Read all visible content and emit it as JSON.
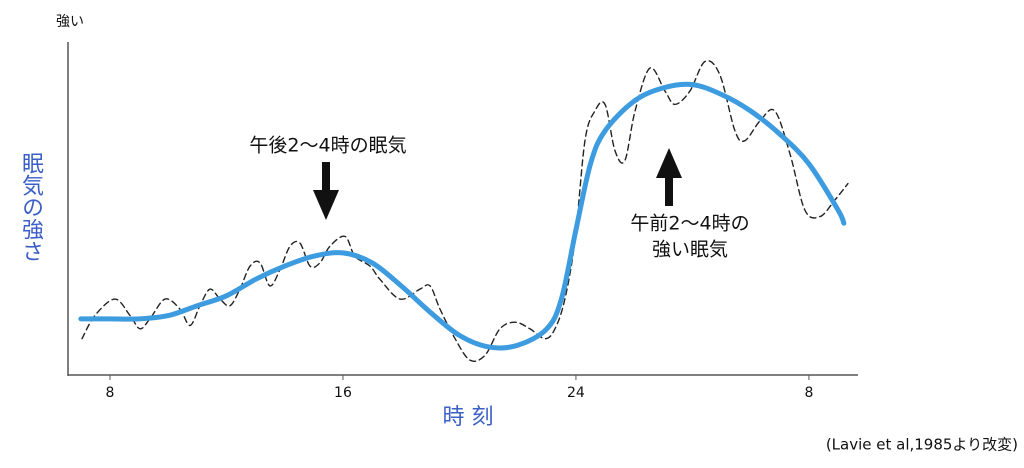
{
  "chart_data": {
    "type": "line",
    "y_top_label": "強い",
    "ylabel": "眠気の強さ",
    "xlabel": "時 刻",
    "annotations": [
      "午後2〜4時の眠気",
      "午前2〜4時の",
      "強い眠気"
    ],
    "source": "(Lavie et al,1985より改変)",
    "xlim": [
      6.5,
      33.5
    ],
    "xticks": [
      8,
      16,
      24,
      {
        "value": 32,
        "label": "8"
      }
    ],
    "ylim": [
      0,
      100
    ],
    "series": [
      {
        "color": "#3d9be0",
        "dashed": false,
        "x": [
          7,
          8,
          9,
          10,
          11,
          12,
          13,
          14,
          15,
          16,
          17,
          18,
          19,
          20,
          21,
          22,
          23,
          23.5,
          24,
          24.5,
          25,
          26,
          27,
          28,
          29,
          30,
          31,
          32,
          33,
          33.2
        ],
        "values": [
          17,
          17,
          17,
          18,
          21,
          24,
          29,
          33,
          36,
          37,
          34,
          27,
          19,
          12,
          8.5,
          9,
          14,
          23,
          44,
          64,
          74,
          83,
          87,
          88,
          85,
          80,
          73,
          64,
          50,
          46
        ]
      },
      {
        "color": "#222222",
        "dashed": true,
        "x": [
          7.04,
          7.48,
          8.17,
          8.69,
          9.03,
          9.37,
          9.89,
          10.4,
          10.75,
          11.09,
          11.43,
          11.78,
          12.12,
          12.46,
          12.81,
          13.15,
          13.49,
          13.84,
          14.18,
          14.52,
          14.87,
          15.21,
          15.55,
          16.07,
          16.41,
          16.93,
          17.27,
          17.96,
          18.64,
          18.99,
          19.33,
          19.85,
          20.36,
          20.88,
          21.39,
          21.91,
          22.42,
          22.94,
          23.28,
          23.62,
          23.97,
          24.31,
          24.65,
          25,
          25.34,
          25.68,
          26.03,
          26.54,
          27.06,
          27.4,
          27.91,
          28.43,
          28.94,
          29.46,
          29.8,
          30.32,
          30.83,
          31.35,
          31.86,
          32.38,
          32.89,
          33.34
        ],
        "values": [
          11,
          18,
          23,
          18,
          14,
          17,
          23,
          20,
          15,
          21,
          26,
          23,
          21,
          26,
          33,
          34,
          27,
          32,
          39,
          40,
          33,
          34,
          39,
          42,
          36,
          33,
          29,
          23,
          26,
          27,
          20,
          11,
          4.5,
          6,
          14,
          16,
          14,
          11,
          14,
          23,
          41,
          71,
          80,
          82,
          68,
          65,
          80,
          93,
          86,
          82,
          86,
          95,
          91,
          74,
          71,
          77,
          80,
          67,
          50,
          48,
          53,
          58
        ]
      }
    ]
  }
}
